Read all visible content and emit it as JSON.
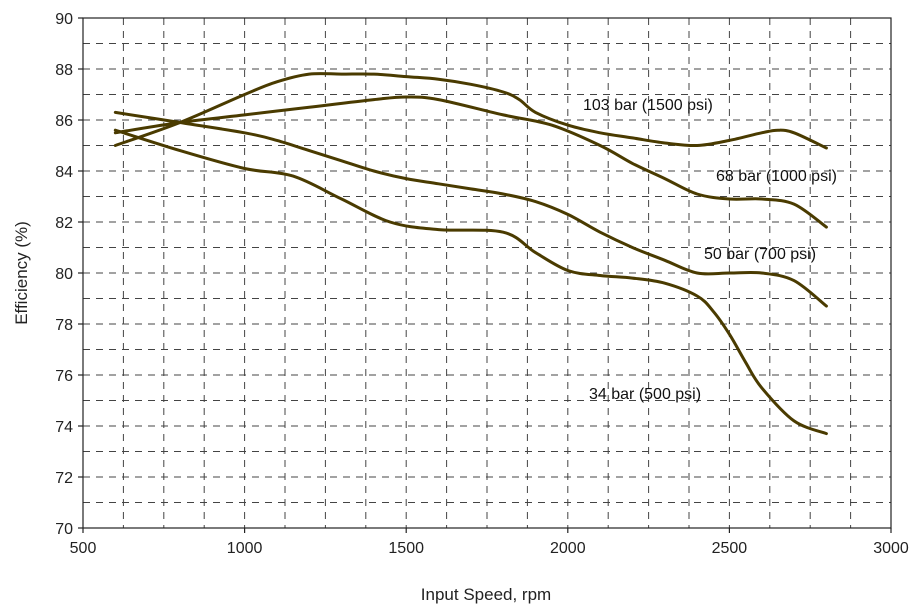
{
  "chart_data": {
    "type": "line",
    "title": "",
    "xlabel": "Input Speed, rpm",
    "ylabel": "Efficiency (%)",
    "xlim": [
      500,
      3000
    ],
    "ylim": [
      70,
      90
    ],
    "xticks": [
      500,
      1000,
      1500,
      2000,
      2500,
      3000
    ],
    "yticks": [
      70,
      72,
      74,
      76,
      78,
      80,
      82,
      84,
      86,
      88,
      90
    ],
    "grid": true,
    "grid_style": "dashed",
    "legend": "none",
    "series": [
      {
        "name": "103 bar (1500 psi)",
        "points": [
          [
            600,
            85.0
          ],
          [
            800,
            85.9
          ],
          [
            1000,
            87.0
          ],
          [
            1100,
            87.5
          ],
          [
            1200,
            87.8
          ],
          [
            1300,
            87.8
          ],
          [
            1400,
            87.8
          ],
          [
            1500,
            87.7
          ],
          [
            1600,
            87.6
          ],
          [
            1700,
            87.4
          ],
          [
            1800,
            87.1
          ],
          [
            1850,
            86.8
          ],
          [
            1900,
            86.3
          ],
          [
            2000,
            85.8
          ],
          [
            2100,
            85.5
          ],
          [
            2200,
            85.3
          ],
          [
            2300,
            85.1
          ],
          [
            2400,
            85.0
          ],
          [
            2500,
            85.2
          ],
          [
            2600,
            85.5
          ],
          [
            2650,
            85.6
          ],
          [
            2700,
            85.5
          ],
          [
            2800,
            84.9
          ]
        ],
        "color": "#4a3b00"
      },
      {
        "name": "68 bar (1000 psi)",
        "points": [
          [
            600,
            85.5
          ],
          [
            800,
            85.9
          ],
          [
            1000,
            86.2
          ],
          [
            1200,
            86.5
          ],
          [
            1400,
            86.8
          ],
          [
            1500,
            86.9
          ],
          [
            1600,
            86.8
          ],
          [
            1800,
            86.2
          ],
          [
            1950,
            85.8
          ],
          [
            2100,
            85.0
          ],
          [
            2200,
            84.3
          ],
          [
            2300,
            83.7
          ],
          [
            2400,
            83.1
          ],
          [
            2500,
            82.9
          ],
          [
            2600,
            82.9
          ],
          [
            2700,
            82.7
          ],
          [
            2800,
            81.8
          ]
        ],
        "color": "#4a3b00"
      },
      {
        "name": "50 bar (700 psi)",
        "points": [
          [
            600,
            86.3
          ],
          [
            800,
            85.9
          ],
          [
            1000,
            85.5
          ],
          [
            1100,
            85.2
          ],
          [
            1200,
            84.8
          ],
          [
            1300,
            84.4
          ],
          [
            1400,
            84.0
          ],
          [
            1500,
            83.7
          ],
          [
            1600,
            83.5
          ],
          [
            1700,
            83.3
          ],
          [
            1800,
            83.1
          ],
          [
            1900,
            82.8
          ],
          [
            2000,
            82.3
          ],
          [
            2100,
            81.6
          ],
          [
            2200,
            81.0
          ],
          [
            2300,
            80.5
          ],
          [
            2400,
            80.0
          ],
          [
            2500,
            80.0
          ],
          [
            2600,
            80.0
          ],
          [
            2700,
            79.7
          ],
          [
            2800,
            78.7
          ]
        ],
        "color": "#4a3b00"
      },
      {
        "name": "34 bar (500 psi)",
        "points": [
          [
            600,
            85.6
          ],
          [
            800,
            84.8
          ],
          [
            1000,
            84.1
          ],
          [
            1150,
            83.8
          ],
          [
            1300,
            82.9
          ],
          [
            1450,
            82.0
          ],
          [
            1600,
            81.7
          ],
          [
            1800,
            81.6
          ],
          [
            1900,
            80.8
          ],
          [
            2000,
            80.1
          ],
          [
            2100,
            79.9
          ],
          [
            2200,
            79.8
          ],
          [
            2300,
            79.6
          ],
          [
            2400,
            79.1
          ],
          [
            2450,
            78.5
          ],
          [
            2500,
            77.6
          ],
          [
            2550,
            76.5
          ],
          [
            2600,
            75.5
          ],
          [
            2700,
            74.2
          ],
          [
            2800,
            73.7
          ]
        ],
        "color": "#4a3b00"
      }
    ]
  }
}
